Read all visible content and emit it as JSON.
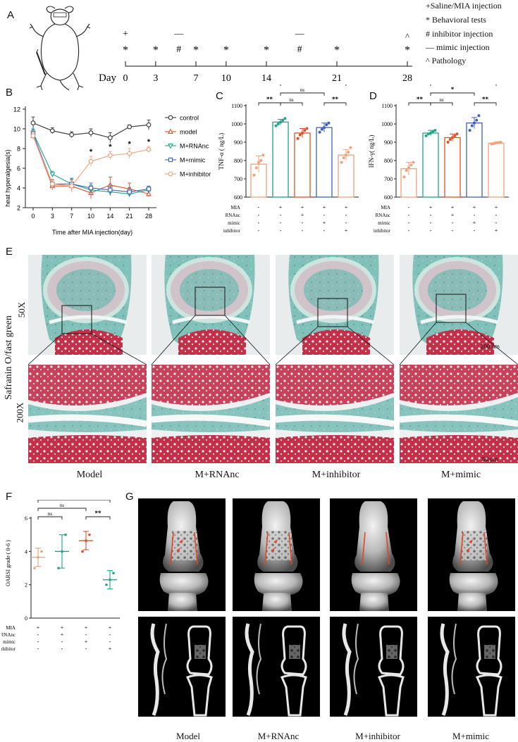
{
  "panels": {
    "A": "A",
    "B": "B",
    "C": "C",
    "D": "D",
    "E": "E",
    "F": "F",
    "G": "G"
  },
  "panelA": {
    "legend": [
      {
        "symbol": "+",
        "label": "Saline/MIA injection"
      },
      {
        "symbol": "*",
        "label": "Behavioral tests"
      },
      {
        "symbol": "#",
        "label": "inhibitor injection"
      },
      {
        "symbol": "—",
        "label": "mimic injection"
      },
      {
        "symbol": "^",
        "label": "Pathology"
      }
    ],
    "day_label": "Day",
    "days": [
      0,
      3,
      7,
      10,
      14,
      21,
      28
    ],
    "markers": [
      {
        "day": 0,
        "plus": "+",
        "star": "*"
      },
      {
        "day": 3,
        "star": "*"
      },
      {
        "day": 5.3,
        "bar": "—",
        "hash": "#"
      },
      {
        "day": 7,
        "star": "*"
      },
      {
        "day": 10,
        "star": "*"
      },
      {
        "day": 14,
        "star": "*"
      },
      {
        "day": 17.3,
        "bar": "—",
        "hash": "#"
      },
      {
        "day": 21,
        "star": "*"
      },
      {
        "day": 28,
        "caret": "^",
        "star": "*"
      }
    ]
  },
  "chart_data": [
    {
      "type": "line",
      "panel": "B",
      "ylabel": "heat hyperalgesia(s)",
      "xlabel": "Time after MIA injection(day)",
      "x": [
        0,
        3,
        7,
        10,
        14,
        21,
        28
      ],
      "ylim": [
        2,
        12
      ],
      "yticks": [
        2,
        4,
        6,
        8,
        10,
        12
      ],
      "series": [
        {
          "name": "control",
          "color": "#333333",
          "marker": "circle",
          "values": [
            10.6,
            9.8,
            9.4,
            9.6,
            9.1,
            10.2,
            10.4
          ],
          "err": [
            0.6,
            0.3,
            0.3,
            0.4,
            0.5,
            0.2,
            0.5
          ]
        },
        {
          "name": "model",
          "color": "#e0502a",
          "marker": "triangle",
          "values": [
            9.3,
            4.2,
            4.2,
            3.5,
            4.3,
            3.9,
            3.4
          ],
          "err": [
            0.4,
            0.4,
            0.6,
            0.6,
            0.8,
            0.6,
            0.3
          ]
        },
        {
          "name": "M+RNAnc",
          "color": "#1fa58a",
          "marker": "triangle-down",
          "values": [
            9.6,
            5.4,
            4.4,
            3.8,
            3.6,
            3.4,
            3.8
          ],
          "err": [
            0.4,
            0.3,
            0.6,
            0.5,
            0.4,
            0.3,
            0.3
          ]
        },
        {
          "name": "M+mimic",
          "color": "#3f62b5",
          "marker": "square",
          "values": [
            9.5,
            4.4,
            4.4,
            4.0,
            3.8,
            3.6,
            3.9
          ],
          "err": [
            0.4,
            0.4,
            0.5,
            0.5,
            0.5,
            0.4,
            0.3
          ]
        },
        {
          "name": "M+inhibitor",
          "color": "#f2a07a",
          "marker": "circle",
          "values": [
            9.3,
            4.4,
            4.2,
            6.7,
            7.3,
            7.5,
            7.9
          ],
          "err": [
            0.4,
            0.5,
            0.6,
            0.5,
            0.4,
            0.5,
            0.3
          ]
        }
      ],
      "significance": [
        {
          "x": 10,
          "label": "*"
        },
        {
          "x": 14,
          "label": "*"
        },
        {
          "x": 21,
          "label": "*"
        },
        {
          "x": 28,
          "label": "*"
        }
      ]
    },
    {
      "type": "bar",
      "panel": "C",
      "ylabel": "TNF-α ( ng/L)",
      "ylim": [
        600,
        1100
      ],
      "yticks": [
        600,
        700,
        800,
        900,
        1000,
        1100
      ],
      "categories": [
        "1",
        "2",
        "3",
        "4",
        "5"
      ],
      "colors": [
        "#f2a07a",
        "#1fa58a",
        "#e0502a",
        "#3f62b5",
        "#f2a07a"
      ],
      "values": [
        780,
        1010,
        950,
        980,
        830
      ],
      "err": [
        45,
        15,
        25,
        25,
        30
      ],
      "points": [
        [
          720,
          760,
          790,
          800,
          830
        ],
        [
          990,
          1000,
          1010,
          1020,
          1030
        ],
        [
          920,
          940,
          950,
          965,
          975
        ],
        [
          955,
          970,
          980,
          995,
          1005
        ],
        [
          790,
          815,
          830,
          845,
          870
        ]
      ],
      "brackets": [
        {
          "from": 0,
          "to": 1,
          "label": "**",
          "level": 0
        },
        {
          "from": 1,
          "to": 2,
          "label": "ns",
          "level": 0
        },
        {
          "from": 1,
          "to": 3,
          "label": "ns",
          "level": 1
        },
        {
          "from": 3,
          "to": 4,
          "label": "**",
          "level": 0
        },
        {
          "from": 1,
          "to": 4,
          "label": "**",
          "level": 2
        }
      ],
      "rows": [
        {
          "label": "MIA",
          "cells": [
            "-",
            "+",
            "+",
            "+",
            "+"
          ]
        },
        {
          "label": "RNAnc",
          "cells": [
            "-",
            "-",
            "+",
            "-",
            "-"
          ]
        },
        {
          "label": "mimic",
          "cells": [
            "-",
            "-",
            "-",
            "+",
            "-"
          ]
        },
        {
          "label": "inhibitor",
          "cells": [
            "-",
            "-",
            "-",
            "-",
            "+"
          ]
        }
      ]
    },
    {
      "type": "bar",
      "panel": "D",
      "ylabel": "IFN-γ( ng/L)",
      "ylim": [
        600,
        1100
      ],
      "yticks": [
        600,
        700,
        800,
        900,
        1000,
        1100
      ],
      "categories": [
        "1",
        "2",
        "3",
        "4",
        "5"
      ],
      "colors": [
        "#f2a07a",
        "#1fa58a",
        "#e0502a",
        "#3f62b5",
        "#f2a07a"
      ],
      "values": [
        755,
        950,
        925,
        1005,
        895
      ],
      "err": [
        35,
        15,
        20,
        30,
        5
      ],
      "points": [
        [
          710,
          745,
          760,
          775,
          790
        ],
        [
          935,
          945,
          950,
          958,
          965
        ],
        [
          900,
          915,
          925,
          935,
          945
        ],
        [
          965,
          990,
          1005,
          1020,
          1045
        ],
        [
          890,
          893,
          896,
          898,
          900
        ]
      ],
      "brackets": [
        {
          "from": 0,
          "to": 1,
          "label": "**",
          "level": 0
        },
        {
          "from": 1,
          "to": 2,
          "label": "ns",
          "level": 0
        },
        {
          "from": 1,
          "to": 3,
          "label": "*",
          "level": 1
        },
        {
          "from": 3,
          "to": 4,
          "label": "**",
          "level": 0
        },
        {
          "from": 1,
          "to": 4,
          "label": "**",
          "level": 2
        }
      ],
      "rows": [
        {
          "label": "MIA",
          "cells": [
            "-",
            "+",
            "+",
            "+",
            "+"
          ]
        },
        {
          "label": "RNAnc",
          "cells": [
            "-",
            "-",
            "+",
            "-",
            "-"
          ]
        },
        {
          "label": "mimic",
          "cells": [
            "-",
            "-",
            "-",
            "+",
            "-"
          ]
        },
        {
          "label": "inhibitor",
          "cells": [
            "-",
            "-",
            "-",
            "-",
            "+"
          ]
        }
      ]
    },
    {
      "type": "scatter",
      "panel": "F",
      "ylabel": "OARSI grade ( 0-6 )",
      "ylim": [
        0,
        6
      ],
      "yticks": [
        0,
        2,
        4,
        6
      ],
      "categories": [
        "1",
        "2",
        "3",
        "4"
      ],
      "colors": [
        "#f2a07a",
        "#1fa58a",
        "#e0502a",
        "#1fa58a"
      ],
      "means": [
        3.65,
        4.0,
        4.65,
        2.3
      ],
      "err": [
        0.55,
        1.0,
        0.55,
        0.55
      ],
      "points": [
        [
          3.0,
          3.65,
          4.0
        ],
        [
          3.0,
          4.0,
          5.0
        ],
        [
          4.0,
          4.65,
          5.0
        ],
        [
          2.0,
          2.3,
          2.7
        ]
      ],
      "brackets": [
        {
          "from": 0,
          "to": 1,
          "label": "ns",
          "level": 0
        },
        {
          "from": 0,
          "to": 2,
          "label": "ns",
          "level": 1
        },
        {
          "from": 2,
          "to": 3,
          "label": "**",
          "level": 0
        },
        {
          "from": 0,
          "to": 3,
          "label": "*",
          "level": 2
        }
      ],
      "rows": [
        {
          "label": "MIA",
          "cells": [
            "+",
            "+",
            "+",
            "+"
          ]
        },
        {
          "label": "RNAnc",
          "cells": [
            "-",
            "+",
            "-",
            "-"
          ]
        },
        {
          "label": "mimic",
          "cells": [
            "-",
            "-",
            "+",
            "-"
          ]
        },
        {
          "label": "inhibitor",
          "cells": [
            "-",
            "-",
            "-",
            "+"
          ]
        }
      ]
    }
  ],
  "panelE": {
    "stain": "Safranin O/fast green",
    "mag_top": "50X",
    "mag_bottom": "200X",
    "scale_top": "200 μm",
    "scale_bottom": "50 μm",
    "groups": [
      "Model",
      "M+RNAnc",
      "M+inhibitor",
      "M+mimic"
    ]
  },
  "panelG": {
    "groups": [
      "Model",
      "M+RNAnc",
      "M+inhibitor",
      "M+mimic"
    ]
  }
}
